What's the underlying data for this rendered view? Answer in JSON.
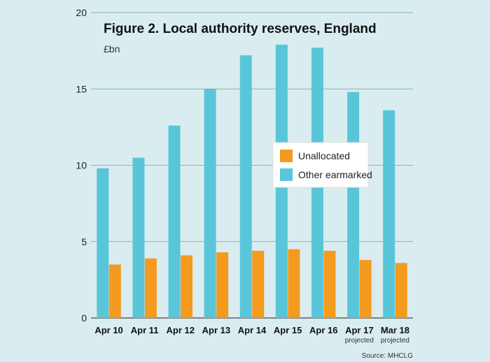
{
  "chart_data": {
    "type": "bar",
    "title": "Figure 2. Local authority reserves, England",
    "unit_label": "£bn",
    "categories": [
      "Apr 10",
      "Apr 11",
      "Apr 12",
      "Apr 13",
      "Apr 14",
      "Apr 15",
      "Apr 16",
      "Apr 17",
      "Mar 18"
    ],
    "category_sublabels": [
      "",
      "",
      "",
      "",
      "",
      "",
      "",
      "projected",
      "projected"
    ],
    "series": [
      {
        "name": "Unallocated",
        "color": "#f39a1f",
        "values": [
          3.5,
          3.9,
          4.1,
          4.3,
          4.4,
          4.5,
          4.4,
          3.8,
          3.6
        ]
      },
      {
        "name": "Other earmarked",
        "color": "#58c6d8",
        "values": [
          9.8,
          10.5,
          12.6,
          15.0,
          17.2,
          17.9,
          17.7,
          14.8,
          13.6
        ]
      }
    ],
    "ylim": [
      0,
      20
    ],
    "yticks": [
      0,
      5,
      10,
      15,
      20
    ],
    "grid": true,
    "legend_position": "center-right",
    "source": "Source: MHCLG"
  }
}
